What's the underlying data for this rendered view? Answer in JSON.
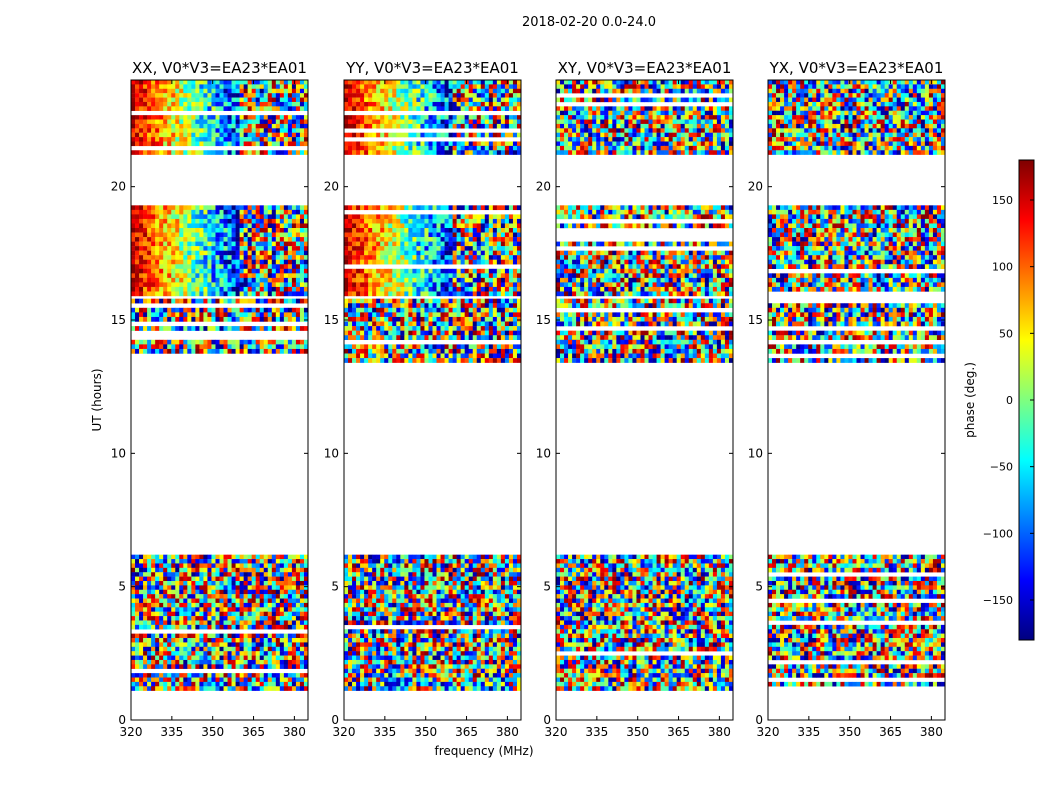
{
  "suptitle": "2018-02-20 0.0-24.0",
  "chart_data": {
    "type": "heatmap",
    "description_kind": "waterfall phase plot per polarization",
    "xlabel": "frequency (MHz)",
    "ylabel": "UT (hours)",
    "xlim": [
      320,
      385
    ],
    "ylim": [
      0,
      24
    ],
    "xticks": [
      320,
      335,
      350,
      365,
      380
    ],
    "yticks": [
      0,
      5,
      10,
      15,
      20
    ],
    "panels": [
      {
        "id": "xx",
        "title": "XX, V0*V3=EA23*EA01",
        "coherent": true,
        "coherent_bands": [
          [
            21.2,
            24
          ],
          [
            15.9,
            19.3
          ]
        ]
      },
      {
        "id": "yy",
        "title": "YY, V0*V3=EA23*EA01",
        "coherent": true,
        "coherent_bands": [
          [
            21.2,
            24
          ],
          [
            15.9,
            19.3
          ]
        ]
      },
      {
        "id": "xy",
        "title": "XY, V0*V3=EA23*EA01",
        "coherent": false,
        "coherent_bands": []
      },
      {
        "id": "yx",
        "title": "YX, V0*V3=EA23*EA01",
        "coherent": false,
        "coherent_bands": []
      }
    ],
    "data_time_ranges": [
      [
        21.2,
        24.0
      ],
      [
        15.9,
        19.3
      ],
      [
        13.4,
        15.8
      ],
      [
        1.1,
        6.2
      ]
    ],
    "colorbar": {
      "label": "phase (deg.)",
      "vmin": -180,
      "vmax": 180,
      "ticks": [
        "150",
        "100",
        "50",
        "0",
        "−50",
        "−100",
        "−150"
      ],
      "tick_values": [
        150,
        100,
        50,
        0,
        -50,
        -100,
        -150
      ],
      "colormap": "jet",
      "stops": [
        "#00007f",
        "#0000ff",
        "#007fff",
        "#00ffff",
        "#7fff7f",
        "#ffff00",
        "#ff7f00",
        "#ff0000",
        "#7f0000"
      ]
    }
  }
}
